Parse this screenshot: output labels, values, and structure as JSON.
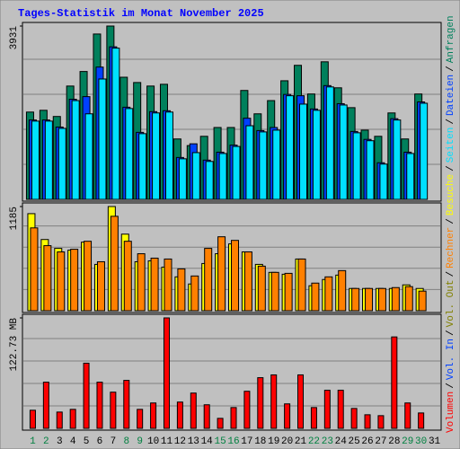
{
  "title": "Tages-Statistik im Monat November 2025",
  "legend_separator": "/",
  "chart_data": [
    {
      "type": "bar",
      "ylim": [
        0,
        3931
      ],
      "yticks": [
        3931
      ],
      "series": [
        {
          "name": "Anfragen",
          "color": "#00805c",
          "values": [
            1980,
            2020,
            1880,
            2570,
            2900,
            3750,
            3931,
            2770,
            2650,
            2570,
            2610,
            1370,
            1220,
            1430,
            1630,
            1630,
            2470,
            1940,
            2240,
            2690,
            3040,
            2390,
            3120,
            2530,
            2080,
            1570,
            1430,
            1960,
            1370,
            2390,
            null
          ]
        },
        {
          "name": "Dateien",
          "color": "#0040ff",
          "values": [
            1800,
            1800,
            1640,
            2270,
            2330,
            3000,
            3460,
            2090,
            1520,
            1990,
            2010,
            950,
            1260,
            890,
            1070,
            1230,
            1840,
            1560,
            1630,
            2380,
            2350,
            2050,
            2580,
            2170,
            1540,
            1360,
            830,
            1830,
            1070,
            2210,
            null
          ]
        },
        {
          "name": "Seiten",
          "color": "#00e0ff",
          "values": [
            1775,
            1775,
            1610,
            2240,
            1940,
            2730,
            3430,
            2060,
            1490,
            1960,
            1980,
            920,
            1060,
            860,
            1040,
            1200,
            1670,
            1530,
            1570,
            2350,
            2160,
            2020,
            2550,
            2140,
            1510,
            1330,
            800,
            1800,
            1040,
            2180,
            null
          ]
        }
      ]
    },
    {
      "type": "bar",
      "ylim": [
        0,
        1185
      ],
      "yticks": [
        1185
      ],
      "series": [
        {
          "name": "Besuche",
          "color": "#ffff00",
          "values": [
            1104,
            810,
            709,
            689,
            780,
            527,
            1185,
            871,
            557,
            567,
            496,
            385,
            304,
            537,
            648,
            760,
            669,
            527,
            436,
            415,
            588,
            284,
            355,
            405,
            253,
            253,
            253,
            253,
            294,
            253,
            null
          ]
        },
        {
          "name": "Rechner",
          "color": "#ff8000",
          "values": [
            942,
            740,
            669,
            699,
            790,
            557,
            1074,
            790,
            648,
            598,
            588,
            476,
            395,
            709,
            841,
            800,
            669,
            507,
            436,
            425,
            588,
            314,
            385,
            456,
            253,
            253,
            253,
            263,
            274,
            223,
            null
          ]
        }
      ]
    },
    {
      "type": "bar",
      "ylim": [
        0,
        122.73
      ],
      "yticks": [
        {
          "value": 122.73,
          "label": "122.73 MB"
        }
      ],
      "categories": [
        "1",
        "2",
        "3",
        "4",
        "5",
        "6",
        "7",
        "8",
        "9",
        "10",
        "11",
        "12",
        "13",
        "14",
        "15",
        "16",
        "17",
        "18",
        "19",
        "20",
        "21",
        "22",
        "23",
        "24",
        "25",
        "26",
        "27",
        "28",
        "29",
        "30",
        "31"
      ],
      "category_colors": [
        "#008040",
        "#008040",
        "#000000",
        "#000000",
        "#000000",
        "#000000",
        "#000000",
        "#008040",
        "#008040",
        "#000000",
        "#000000",
        "#000000",
        "#000000",
        "#000000",
        "#008040",
        "#008040",
        "#000000",
        "#000000",
        "#000000",
        "#000000",
        "#000000",
        "#008040",
        "#008040",
        "#000000",
        "#000000",
        "#000000",
        "#000000",
        "#000000",
        "#008040",
        "#008040",
        "#000000"
      ],
      "series": [
        {
          "name": "Vol. Out",
          "color": "#808000",
          "values": [
            null,
            null,
            null,
            null,
            null,
            null,
            null,
            null,
            null,
            null,
            null,
            null,
            null,
            null,
            null,
            null,
            null,
            null,
            null,
            null,
            null,
            null,
            null,
            null,
            null,
            null,
            null,
            null,
            null,
            null,
            null
          ]
        },
        {
          "name": "Vol. In",
          "color": "#0040ff",
          "values": [
            null,
            null,
            null,
            null,
            null,
            null,
            null,
            null,
            null,
            null,
            null,
            null,
            null,
            null,
            null,
            null,
            null,
            null,
            null,
            null,
            null,
            null,
            null,
            null,
            null,
            null,
            null,
            null,
            null,
            null,
            null
          ]
        },
        {
          "name": "Volumen",
          "color": "#ff0000",
          "values": [
            20.1,
            51.3,
            18.1,
            21.1,
            72.4,
            51.3,
            40.2,
            53.3,
            21.1,
            28.2,
            122.73,
            29.2,
            39.2,
            26.2,
            11.1,
            23.1,
            41.2,
            56.3,
            59.4,
            27.2,
            59.4,
            23.1,
            42.3,
            42.3,
            22.1,
            15.1,
            14.1,
            101.6,
            28.2,
            17.1,
            null
          ]
        }
      ]
    }
  ]
}
